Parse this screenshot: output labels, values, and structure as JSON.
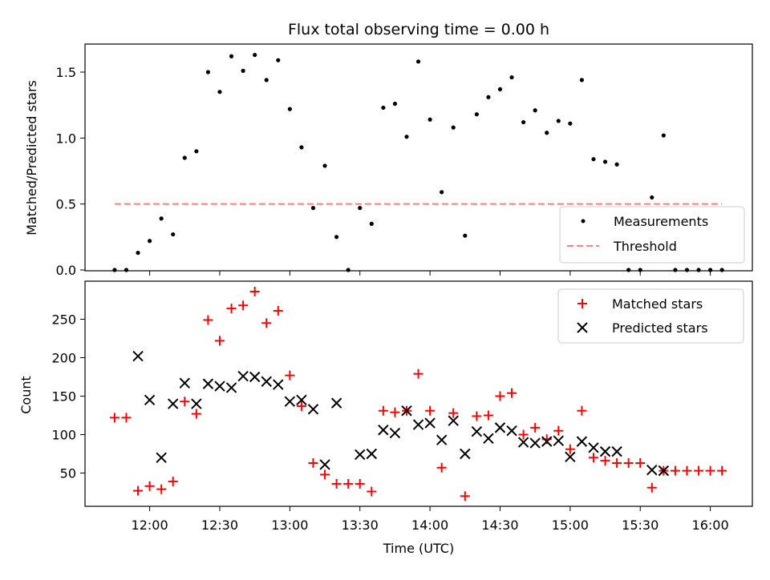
{
  "chart_data": [
    {
      "type": "scatter",
      "title": "Flux total observing time = 0.00 h",
      "xlabel": "",
      "ylabel": "Matched/Predicted stars",
      "ylim": [
        0,
        1.72
      ],
      "y_ticks": [
        0.0,
        0.5,
        1.0,
        1.5
      ],
      "y_tick_labels": [
        "0.0",
        "0.5",
        "1.0",
        "1.5"
      ],
      "legend_position": "lower-right",
      "series": [
        {
          "name": "Measurements",
          "marker": "dot",
          "color": "#000000",
          "x": [
            "11:45",
            "11:50",
            "11:55",
            "12:00",
            "12:05",
            "12:10",
            "12:15",
            "12:20",
            "12:25",
            "12:30",
            "12:35",
            "12:40",
            "12:45",
            "12:50",
            "12:55",
            "13:00",
            "13:05",
            "13:10",
            "13:15",
            "13:20",
            "13:25",
            "13:30",
            "13:35",
            "13:40",
            "13:45",
            "13:50",
            "13:55",
            "14:00",
            "14:05",
            "14:10",
            "14:15",
            "14:20",
            "14:25",
            "14:30",
            "14:35",
            "14:40",
            "14:45",
            "14:50",
            "14:55",
            "15:00",
            "15:05",
            "15:10",
            "15:15",
            "15:20",
            "15:25",
            "15:30",
            "15:35",
            "15:40",
            "15:45",
            "15:50",
            "15:55",
            "16:00",
            "16:05"
          ],
          "y": [
            0.0,
            0.0,
            0.13,
            0.22,
            0.39,
            0.27,
            0.85,
            0.9,
            1.5,
            1.35,
            1.62,
            1.51,
            1.63,
            1.44,
            1.59,
            1.22,
            0.93,
            0.47,
            0.79,
            0.25,
            0.0,
            0.47,
            0.35,
            1.23,
            1.26,
            1.01,
            1.58,
            1.14,
            0.59,
            1.08,
            0.26,
            1.18,
            1.31,
            1.37,
            1.46,
            1.12,
            1.21,
            1.04,
            1.13,
            1.11,
            1.44,
            0.84,
            0.82,
            0.8,
            0.0,
            0.0,
            0.55,
            1.02,
            0.0,
            0.0,
            0.0,
            0.0,
            0.0
          ]
        },
        {
          "name": "Threshold",
          "style": "dashed-line",
          "color": "#ff7f7f",
          "x": [
            "11:45",
            "16:05"
          ],
          "y": [
            0.5,
            0.5
          ]
        }
      ]
    },
    {
      "type": "scatter",
      "title": "",
      "xlabel": "Time (UTC)",
      "ylabel": "Count",
      "ylim": [
        5,
        297
      ],
      "y_ticks": [
        50,
        100,
        150,
        200,
        250
      ],
      "x_tick_labels": [
        "12:00",
        "12:30",
        "13:00",
        "13:30",
        "14:00",
        "14:30",
        "15:00",
        "15:30",
        "16:00"
      ],
      "legend_position": "upper-right",
      "series": [
        {
          "name": "Matched stars",
          "marker": "plus",
          "color": "#ff0000",
          "x": [
            "11:45",
            "11:50",
            "11:55",
            "12:00",
            "12:05",
            "12:10",
            "12:15",
            "12:20",
            "12:25",
            "12:30",
            "12:35",
            "12:40",
            "12:45",
            "12:50",
            "12:55",
            "13:00",
            "13:05",
            "13:10",
            "13:15",
            "13:20",
            "13:25",
            "13:30",
            "13:35",
            "13:40",
            "13:45",
            "13:50",
            "13:55",
            "14:00",
            "14:05",
            "14:10",
            "14:15",
            "14:20",
            "14:25",
            "14:30",
            "14:35",
            "14:40",
            "14:45",
            "14:50",
            "14:55",
            "15:00",
            "15:05",
            "15:10",
            "15:15",
            "15:20",
            "15:25",
            "15:30",
            "15:35",
            "15:40",
            "15:45",
            "15:50",
            "15:55",
            "16:00",
            "16:05"
          ],
          "y": [
            122,
            122,
            27,
            33,
            29,
            39,
            143,
            127,
            249,
            222,
            264,
            268,
            286,
            245,
            261,
            177,
            137,
            63,
            48,
            36,
            36,
            36,
            26,
            131,
            129,
            131,
            179,
            131,
            57,
            128,
            20,
            124,
            125,
            150,
            154,
            100,
            109,
            94,
            105,
            81,
            131,
            70,
            66,
            63,
            63,
            63,
            31,
            53,
            53,
            53,
            53,
            53,
            53
          ]
        },
        {
          "name": "Predicted stars",
          "marker": "x",
          "color": "#000000",
          "x": [
            "11:55",
            "12:00",
            "12:05",
            "12:10",
            "12:15",
            "12:20",
            "12:25",
            "12:30",
            "12:35",
            "12:40",
            "12:45",
            "12:50",
            "12:55",
            "13:00",
            "13:05",
            "13:10",
            "13:15",
            "13:20",
            "13:30",
            "13:35",
            "13:40",
            "13:45",
            "13:50",
            "13:55",
            "14:00",
            "14:05",
            "14:10",
            "14:15",
            "14:20",
            "14:25",
            "14:30",
            "14:35",
            "14:40",
            "14:45",
            "14:50",
            "14:55",
            "15:00",
            "15:05",
            "15:10",
            "15:15",
            "15:20",
            "15:35",
            "15:40"
          ],
          "y": [
            202,
            145,
            70,
            140,
            167,
            140,
            166,
            163,
            161,
            176,
            175,
            169,
            165,
            143,
            145,
            133,
            61,
            141,
            74,
            75,
            106,
            102,
            131,
            113,
            115,
            93,
            118,
            75,
            104,
            95,
            109,
            105,
            90,
            89,
            91,
            92,
            71,
            91,
            83,
            78,
            78,
            54,
            53
          ]
        }
      ]
    }
  ]
}
